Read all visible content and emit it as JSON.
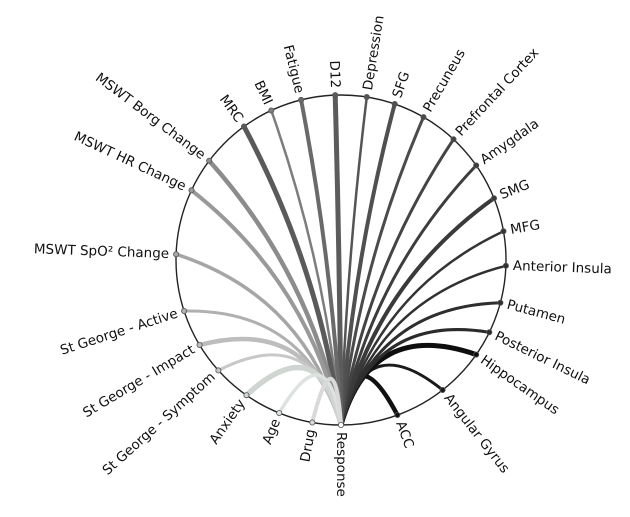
{
  "chart_data": {
    "type": "chord",
    "center_node": "Response",
    "nodes": [
      {
        "label": "Response",
        "angle": 90,
        "color": "#ffffff"
      },
      {
        "label": "ACC",
        "angle": 70,
        "color": "#111111",
        "weight": 4.5
      },
      {
        "label": "Angular Gyrus",
        "angle": 52,
        "color": "#1a1a1a",
        "weight": 3.0
      },
      {
        "label": "Hippocampus",
        "angle": 35,
        "color": "#0e0e0e",
        "weight": 5.0
      },
      {
        "label": "Posterior Insula",
        "angle": 26,
        "color": "#2b2b2b",
        "weight": 3.0
      },
      {
        "label": "Putamen",
        "angle": 15,
        "color": "#2e2e2e",
        "weight": 3.0
      },
      {
        "label": "Anterior Insula",
        "angle": 2,
        "color": "#303030",
        "weight": 2.5
      },
      {
        "label": "MFG",
        "angle": -10,
        "color": "#343434",
        "weight": 2.5
      },
      {
        "label": "SMG",
        "angle": -22,
        "color": "#3a3a3a",
        "weight": 4.0
      },
      {
        "label": "Amygdala",
        "angle": -35,
        "color": "#3d3d3d",
        "weight": 3.0
      },
      {
        "label": "Prefrontal Cortex",
        "angle": -47,
        "color": "#444444",
        "weight": 3.0
      },
      {
        "label": "Precuneus",
        "angle": -60,
        "color": "#4b4b4b",
        "weight": 3.0
      },
      {
        "label": "SFG",
        "angle": -71,
        "color": "#505050",
        "weight": 4.0
      },
      {
        "label": "Depression",
        "angle": -81,
        "color": "#555555",
        "weight": 2.5
      },
      {
        "label": "D12",
        "angle": -92,
        "color": "#5c5c5c",
        "weight": 5.0
      },
      {
        "label": "Fatigue",
        "angle": -104,
        "color": "#6a6a6a",
        "weight": 4.0
      },
      {
        "label": "BMI",
        "angle": -115,
        "color": "#7d7d7d",
        "weight": 2.5
      },
      {
        "label": "MRC",
        "angle": -126,
        "color": "#5a5a5a",
        "weight": 5.0
      },
      {
        "label": "MSWT Borg Change",
        "angle": -143,
        "color": "#8c8c8c",
        "weight": 4.5
      },
      {
        "label": "MSWT HR Change",
        "angle": -155,
        "color": "#999999",
        "weight": 4.0
      },
      {
        "label": "MSWT SpO² Change",
        "angle": -178,
        "color": "#a6a6a6",
        "weight": 3.5
      },
      {
        "label": "St George - Active",
        "angle": 162,
        "color": "#b0b0b0",
        "weight": 3.0
      },
      {
        "label": "St George - Impact",
        "angle": 149,
        "color": "#bdbdbd",
        "weight": 4.5
      },
      {
        "label": "St George - Symptom",
        "angle": 138,
        "color": "#c8c8c8",
        "weight": 3.0
      },
      {
        "label": "Anxiety",
        "angle": 125,
        "color": "#cfd5d1",
        "weight": 5.5
      },
      {
        "label": "Age",
        "angle": 112,
        "color": "#dde2de",
        "weight": 3.5
      },
      {
        "label": "Drug",
        "angle": 100,
        "color": "#d9d9d9",
        "weight": 4.0
      }
    ]
  }
}
